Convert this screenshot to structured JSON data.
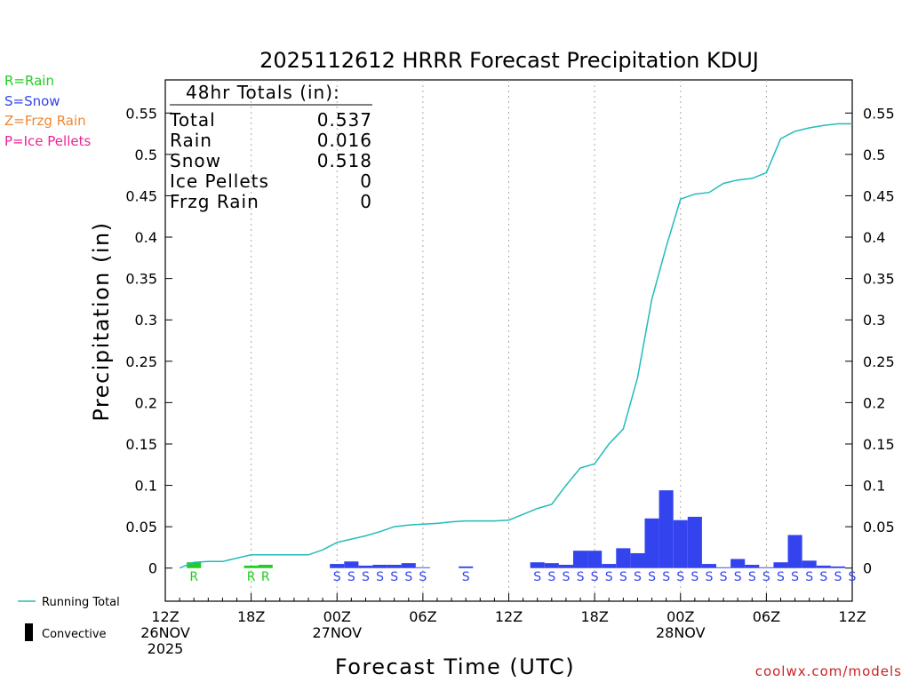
{
  "chart_data": {
    "type": "bar",
    "title": "2025112612 HRRR Forecast Precipitation KDUJ",
    "xlabel": "Forecast Time (UTC)",
    "ylabel": "Precipitation (in)",
    "ylim": [
      -0.04,
      0.59
    ],
    "yticks": [
      0,
      0.05,
      0.1,
      0.15,
      0.2,
      0.25,
      0.3,
      0.35,
      0.4,
      0.45,
      0.5,
      0.55
    ],
    "ytick_labels": [
      "0",
      "0.05",
      "0.1",
      "0.15",
      "0.2",
      "0.25",
      "0.3",
      "0.35",
      "0.4",
      "0.45",
      "0.5",
      "0.55"
    ],
    "xlim": [
      0,
      48
    ],
    "xticks": [
      {
        "hour": 0,
        "lines": [
          "12Z",
          "26NOV",
          "2025"
        ]
      },
      {
        "hour": 6,
        "lines": [
          "18Z"
        ]
      },
      {
        "hour": 12,
        "lines": [
          "00Z",
          "27NOV"
        ]
      },
      {
        "hour": 18,
        "lines": [
          "06Z"
        ]
      },
      {
        "hour": 24,
        "lines": [
          "12Z"
        ]
      },
      {
        "hour": 30,
        "lines": [
          "18Z"
        ]
      },
      {
        "hour": 36,
        "lines": [
          "00Z",
          "28NOV"
        ]
      },
      {
        "hour": 42,
        "lines": [
          "06Z"
        ]
      },
      {
        "hour": 48,
        "lines": [
          "12Z"
        ]
      }
    ],
    "grid": "dotted-vertical",
    "type_legend": [
      {
        "label": "R=Rain",
        "color": "#22cc22"
      },
      {
        "label": "S=Snow",
        "color": "#3344ee"
      },
      {
        "label": "Z=Frzg Rain",
        "color": "#ee8833"
      },
      {
        "label": "P=Ice Pellets",
        "color": "#ee2299"
      }
    ],
    "series_legend": [
      {
        "label": "Running Total",
        "color": "#22bbbb",
        "kind": "line"
      },
      {
        "label": "Convective",
        "color": "#000000",
        "kind": "bar"
      }
    ],
    "totals_box": {
      "heading": "48hr Totals (in):",
      "rows": [
        {
          "label": "Total",
          "value": "0.537"
        },
        {
          "label": "Rain",
          "value": "0.016"
        },
        {
          "label": "Snow",
          "value": "0.518"
        },
        {
          "label": "Ice Pellets",
          "value": "0"
        },
        {
          "label": "Frzg Rain",
          "value": "0"
        }
      ]
    },
    "hourly_precip": [
      {
        "hour": 2,
        "value": 0.007,
        "type": "R"
      },
      {
        "hour": 6,
        "value": 0.003,
        "type": "R"
      },
      {
        "hour": 7,
        "value": 0.004,
        "type": "R"
      },
      {
        "hour": 12,
        "value": 0.005,
        "type": "S"
      },
      {
        "hour": 13,
        "value": 0.008,
        "type": "S"
      },
      {
        "hour": 14,
        "value": 0.003,
        "type": "S"
      },
      {
        "hour": 15,
        "value": 0.004,
        "type": "S"
      },
      {
        "hour": 16,
        "value": 0.004,
        "type": "S"
      },
      {
        "hour": 17,
        "value": 0.006,
        "type": "S"
      },
      {
        "hour": 18,
        "value": 0.001,
        "type": "S"
      },
      {
        "hour": 21,
        "value": 0.002,
        "type": "S"
      },
      {
        "hour": 26,
        "value": 0.007,
        "type": "S"
      },
      {
        "hour": 27,
        "value": 0.006,
        "type": "S"
      },
      {
        "hour": 28,
        "value": 0.004,
        "type": "S"
      },
      {
        "hour": 29,
        "value": 0.021,
        "type": "S"
      },
      {
        "hour": 30,
        "value": 0.021,
        "type": "S"
      },
      {
        "hour": 31,
        "value": 0.005,
        "type": "S"
      },
      {
        "hour": 32,
        "value": 0.024,
        "type": "S"
      },
      {
        "hour": 33,
        "value": 0.018,
        "type": "S"
      },
      {
        "hour": 34,
        "value": 0.06,
        "type": "S"
      },
      {
        "hour": 35,
        "value": 0.094,
        "type": "S"
      },
      {
        "hour": 36,
        "value": 0.058,
        "type": "S"
      },
      {
        "hour": 37,
        "value": 0.062,
        "type": "S"
      },
      {
        "hour": 38,
        "value": 0.005,
        "type": "S"
      },
      {
        "hour": 39,
        "value": 0.001,
        "type": "S"
      },
      {
        "hour": 40,
        "value": 0.011,
        "type": "S"
      },
      {
        "hour": 41,
        "value": 0.004,
        "type": "S"
      },
      {
        "hour": 42,
        "value": 0.001,
        "type": "S"
      },
      {
        "hour": 43,
        "value": 0.007,
        "type": "S"
      },
      {
        "hour": 44,
        "value": 0.04,
        "type": "S"
      },
      {
        "hour": 45,
        "value": 0.009,
        "type": "S"
      },
      {
        "hour": 46,
        "value": 0.003,
        "type": "S"
      },
      {
        "hour": 47,
        "value": 0.002,
        "type": "S"
      }
    ],
    "precip_type_markers": [
      {
        "hour": 2,
        "type": "R"
      },
      {
        "hour": 6,
        "type": "R"
      },
      {
        "hour": 7,
        "type": "R"
      },
      {
        "hour": 12,
        "type": "S"
      },
      {
        "hour": 13,
        "type": "S"
      },
      {
        "hour": 14,
        "type": "S"
      },
      {
        "hour": 15,
        "type": "S"
      },
      {
        "hour": 16,
        "type": "S"
      },
      {
        "hour": 17,
        "type": "S"
      },
      {
        "hour": 18,
        "type": "S"
      },
      {
        "hour": 21,
        "type": "S"
      },
      {
        "hour": 26,
        "type": "S"
      },
      {
        "hour": 27,
        "type": "S"
      },
      {
        "hour": 28,
        "type": "S"
      },
      {
        "hour": 29,
        "type": "S"
      },
      {
        "hour": 30,
        "type": "S"
      },
      {
        "hour": 31,
        "type": "S"
      },
      {
        "hour": 32,
        "type": "S"
      },
      {
        "hour": 33,
        "type": "S"
      },
      {
        "hour": 34,
        "type": "S"
      },
      {
        "hour": 35,
        "type": "S"
      },
      {
        "hour": 36,
        "type": "S"
      },
      {
        "hour": 37,
        "type": "S"
      },
      {
        "hour": 38,
        "type": "S"
      },
      {
        "hour": 39,
        "type": "S"
      },
      {
        "hour": 40,
        "type": "S"
      },
      {
        "hour": 41,
        "type": "S"
      },
      {
        "hour": 42,
        "type": "S"
      },
      {
        "hour": 43,
        "type": "S"
      },
      {
        "hour": 44,
        "type": "S"
      },
      {
        "hour": 45,
        "type": "S"
      },
      {
        "hour": 46,
        "type": "S"
      },
      {
        "hour": 47,
        "type": "S"
      },
      {
        "hour": 48,
        "type": "S"
      }
    ],
    "running_total": {
      "x": [
        1,
        2,
        3,
        4,
        5,
        6,
        7,
        8,
        9,
        10,
        11,
        12,
        13,
        14,
        15,
        16,
        17,
        18,
        19,
        20,
        21,
        22,
        23,
        24,
        25,
        26,
        27,
        28,
        29,
        30,
        31,
        32,
        33,
        34,
        35,
        36,
        37,
        38,
        39,
        40,
        41,
        42,
        43,
        44,
        45,
        46,
        47,
        48
      ],
      "y": [
        0.0,
        0.007,
        0.008,
        0.008,
        0.012,
        0.016,
        0.016,
        0.016,
        0.016,
        0.016,
        0.022,
        0.031,
        0.035,
        0.039,
        0.044,
        0.05,
        0.052,
        0.053,
        0.054,
        0.056,
        0.057,
        0.057,
        0.057,
        0.058,
        0.065,
        0.072,
        0.077,
        0.1,
        0.121,
        0.126,
        0.15,
        0.168,
        0.23,
        0.325,
        0.388,
        0.446,
        0.452,
        0.454,
        0.465,
        0.469,
        0.471,
        0.478,
        0.519,
        0.528,
        0.532,
        0.535,
        0.537,
        0.537
      ]
    },
    "credit": "coolwx.com/models"
  }
}
